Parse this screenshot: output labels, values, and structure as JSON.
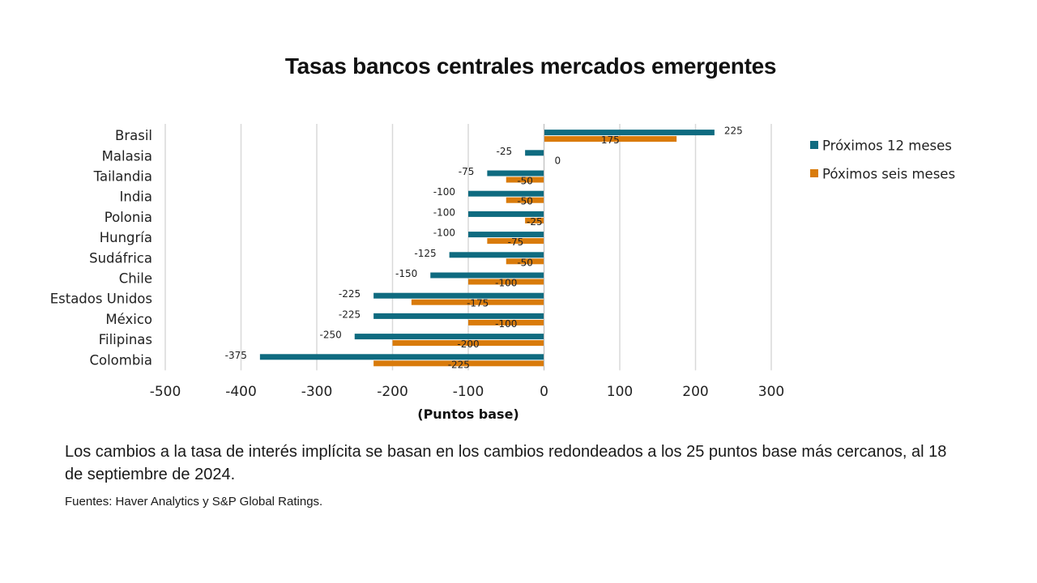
{
  "chart_data": {
    "type": "bar",
    "orientation": "horizontal",
    "title": "Tasas bancos centrales mercados emergentes",
    "xlabel": "(Puntos base)",
    "ylabel": "",
    "xlim": [
      -500,
      300
    ],
    "xticks": [
      -500,
      -400,
      -300,
      -200,
      -100,
      0,
      100,
      200,
      300
    ],
    "grid": "vertical",
    "legend_position": "right",
    "categories": [
      "Brasil",
      "Malasia",
      "Tailandia",
      "India",
      "Polonia",
      "Hungría",
      "Sudáfrica",
      "Chile",
      "Estados Unidos",
      "México",
      "Filipinas",
      "Colombia"
    ],
    "series": [
      {
        "name": "Próximos 12 meses",
        "color": "#0f6b80",
        "values": [
          225,
          -25,
          -75,
          -100,
          -100,
          -100,
          -125,
          -150,
          -225,
          -225,
          -250,
          -375
        ]
      },
      {
        "name": "Póximos seis meses",
        "color": "#d97b0b",
        "values": [
          175,
          0,
          -50,
          -50,
          -25,
          -75,
          -50,
          -100,
          -175,
          -100,
          -200,
          -225
        ]
      }
    ]
  },
  "note": "Los cambios a la tasa de interés implícita se basan en los cambios  redondeados a los 25 puntos base más cercanos, al 18 de septiembre de 2024.",
  "source": "Fuentes: Haver Analytics y S&P Global Ratings."
}
